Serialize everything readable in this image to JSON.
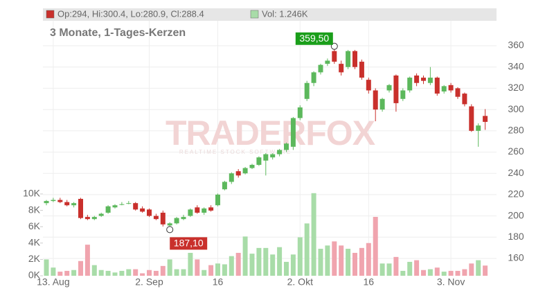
{
  "chart_data": {
    "type": "candlestick",
    "subtitle": "3 Monate, 1-Tages-Kerzen",
    "legend_price": "Op:294, Hi:300.4, Lo:280.9, Cl:288.4",
    "legend_volume": "Vol: 1.246K",
    "watermark": "TRADERFOX",
    "watermark_sub": "REALTIME STOCK SOFTWARE",
    "up_color": "#5cb85c",
    "down_color": "#c9302c",
    "volume_up_color": "#a8dca8",
    "volume_down_color": "#f0a4ae",
    "grid": true,
    "categories": [
      null,
      "13. Aug",
      null,
      null,
      null,
      null,
      null,
      null,
      null,
      null,
      null,
      null,
      null,
      null,
      null,
      "2. Sep",
      null,
      null,
      null,
      null,
      null,
      null,
      null,
      null,
      null,
      "16",
      null,
      null,
      null,
      null,
      null,
      null,
      null,
      null,
      null,
      null,
      null,
      "2. Okt",
      null,
      null,
      null,
      null,
      null,
      null,
      null,
      null,
      null,
      "16",
      null,
      null,
      null,
      null,
      null,
      null,
      null,
      null,
      null,
      null,
      null,
      "3. Nov",
      null,
      null,
      null,
      null,
      null
    ],
    "open": [
      212,
      214,
      215,
      213,
      210,
      216,
      199,
      197,
      200,
      203,
      208,
      211,
      212,
      212,
      207,
      206,
      200,
      203,
      191,
      193,
      197,
      200,
      208,
      203,
      208,
      210,
      225,
      232,
      242,
      240,
      245,
      248,
      252,
      255,
      258,
      262,
      265,
      292,
      310,
      325,
      335,
      343,
      355,
      343,
      340,
      355,
      345,
      328,
      318,
      300,
      318,
      332,
      310,
      318,
      332,
      330,
      325,
      330,
      317,
      323,
      320,
      315,
      303,
      280,
      294
    ],
    "high": [
      215,
      217,
      217,
      215,
      213,
      217,
      201,
      200,
      203,
      210,
      211,
      213,
      214,
      213,
      209,
      207,
      202,
      205,
      194,
      199,
      201,
      207,
      210,
      208,
      210,
      221,
      233,
      241,
      244,
      246,
      249,
      256,
      259,
      259,
      263,
      269,
      293,
      304,
      327,
      336,
      343,
      348,
      359.5,
      346,
      356,
      356,
      347,
      330,
      320,
      311,
      324,
      333,
      320,
      331,
      334,
      332,
      340,
      331,
      323,
      325,
      321,
      316,
      305,
      287,
      300.4
    ],
    "low": [
      210,
      213,
      212,
      209,
      208,
      197,
      196,
      196,
      199,
      202,
      207,
      210,
      211,
      205,
      203,
      199,
      196,
      190,
      187.1,
      192,
      196,
      199,
      202,
      201,
      204,
      209,
      224,
      230,
      236,
      239,
      244,
      247,
      238,
      253,
      256,
      260,
      262,
      290,
      308,
      322,
      333,
      341,
      343,
      332,
      338,
      338,
      328,
      315,
      289,
      298,
      316,
      298,
      308,
      316,
      322,
      324,
      323,
      313,
      315,
      316,
      310,
      303,
      279,
      265,
      280.9
    ],
    "close": [
      214,
      215,
      213,
      210,
      212,
      198,
      197,
      199,
      202,
      209,
      210,
      211,
      212,
      206,
      204,
      200,
      197,
      192,
      193,
      198,
      199,
      206,
      203,
      207,
      205,
      220,
      232,
      240,
      238,
      245,
      248,
      255,
      258,
      258,
      262,
      268,
      292,
      302,
      325,
      335,
      342,
      346,
      345,
      335,
      355,
      340,
      330,
      318,
      300,
      310,
      323,
      306,
      318,
      330,
      325,
      327,
      330,
      315,
      322,
      318,
      312,
      305,
      280,
      285,
      288.4
    ],
    "volume": [
      2.0,
      1.0,
      0.5,
      0.6,
      0.7,
      1.8,
      3.8,
      1.3,
      0.7,
      0.6,
      0.4,
      0.6,
      0.8,
      0.8,
      0.3,
      0.7,
      0.6,
      1.2,
      2.0,
      0.8,
      0.8,
      2.8,
      2.0,
      0.7,
      1.3,
      1.5,
      1.4,
      2.4,
      2.8,
      4.8,
      2.7,
      3.4,
      3.4,
      2.6,
      3.5,
      1.7,
      2.6,
      4.7,
      6.4,
      10.1,
      3.3,
      3.7,
      4.2,
      3.7,
      3.3,
      2.8,
      3.4,
      4.0,
      7.2,
      1.5,
      1.5,
      2.3,
      0.6,
      1.7,
      1.9,
      0.7,
      0.8,
      1.0,
      0.5,
      0.6,
      0.6,
      0.8,
      1.5,
      1.9,
      1.246
    ],
    "max_label": {
      "value": 359.5,
      "label": "359,50"
    },
    "min_label": {
      "value": 187.1,
      "label": "187,10"
    },
    "ylim": [
      143.7,
      395.2
    ],
    "yticks": [
      160,
      180,
      200,
      220,
      240,
      260,
      280,
      300,
      320,
      340,
      360
    ],
    "y2lim": [
      0,
      32.7
    ],
    "y2ticks": [
      {
        "value": 0,
        "label": "0K"
      },
      {
        "value": 2,
        "label": "2K"
      },
      {
        "value": 4,
        "label": "4K"
      },
      {
        "value": 6,
        "label": "6K"
      },
      {
        "value": 8,
        "label": "8K"
      },
      {
        "value": 10,
        "label": "10K"
      }
    ]
  }
}
